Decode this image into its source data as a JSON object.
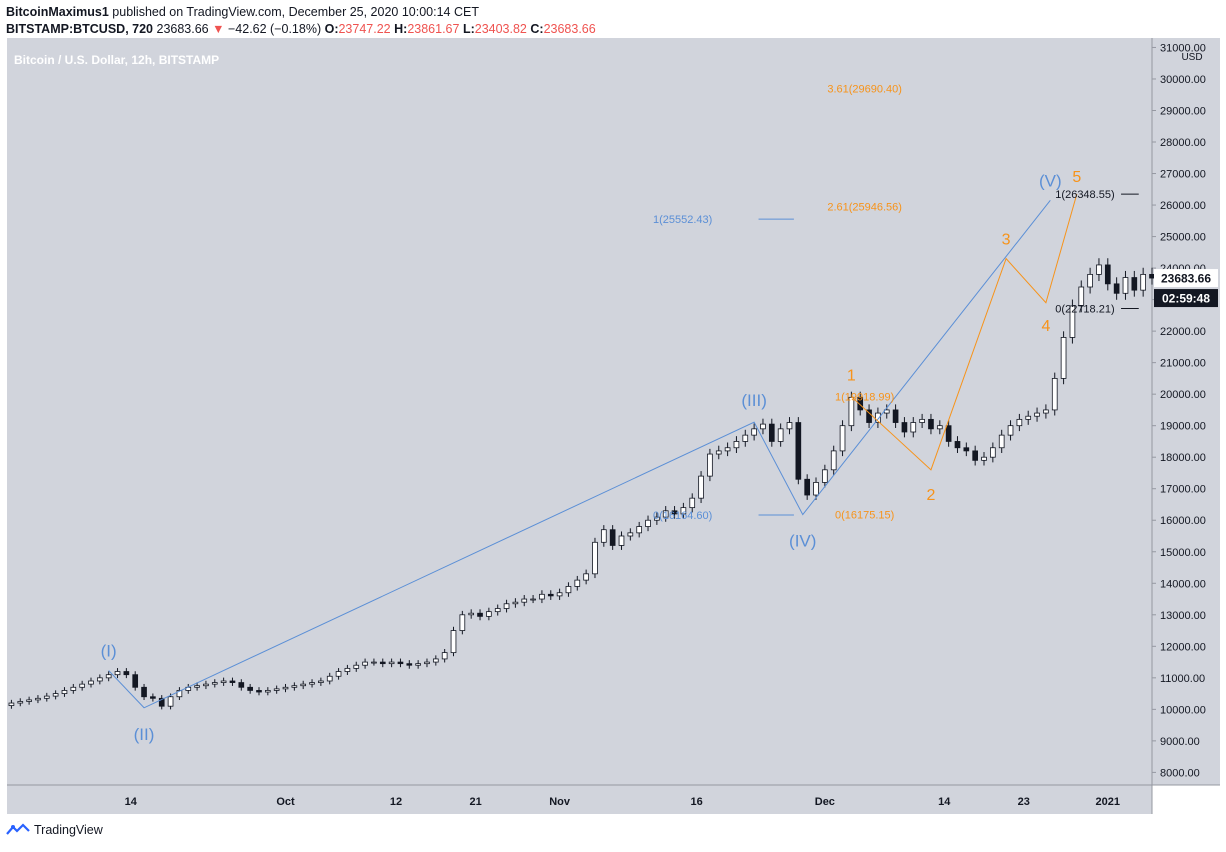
{
  "header": {
    "publisher": "BitcoinMaximus1",
    "published_text": "published on TradingView.com, December 25, 2020 10:00:14 CET",
    "symbol": "BITSTAMP:BTCUSD, 720",
    "last": "23683.66",
    "change_arrow": "▼",
    "change": "−42.62 (−0.18%)",
    "o_label": "O:",
    "o_value": "23747.22",
    "h_label": "H:",
    "h_value": "23861.67",
    "l_label": "L:",
    "l_value": "23403.82",
    "c_label": "C:",
    "c_value": "23683.66"
  },
  "chart_title": "Bitcoin / U.S. Dollar, 12h, BITSTAMP",
  "footer": {
    "brand": "TradingView"
  },
  "colors": {
    "plot_bg": "#d1d4dc",
    "blue": "#5b8fd6",
    "orange": "#f7931a",
    "candle": "#131722",
    "axis_text": "#131722"
  },
  "chart_data": {
    "type": "candlestick",
    "timeframe": "12h",
    "ylim": [
      7600,
      31300
    ],
    "y_axis_unit": "USD",
    "y_ticks": [
      8000,
      9000,
      10000,
      11000,
      12000,
      13000,
      14000,
      15000,
      16000,
      17000,
      18000,
      19000,
      20000,
      21000,
      22000,
      23000,
      24000,
      25000,
      26000,
      27000,
      28000,
      29000,
      30000,
      31000
    ],
    "x_ticks": [
      {
        "label": "14",
        "x": 14.5
      },
      {
        "label": "Oct",
        "x": 32
      },
      {
        "label": "12",
        "x": 44.5
      },
      {
        "label": "21",
        "x": 53.5
      },
      {
        "label": "Nov",
        "x": 63
      },
      {
        "label": "16",
        "x": 78.5
      },
      {
        "label": "Dec",
        "x": 93
      },
      {
        "label": "14",
        "x": 106.5
      },
      {
        "label": "23",
        "x": 115.5
      },
      {
        "label": "2021",
        "x": 125
      }
    ],
    "x_range": [
      0.5,
      130
    ],
    "last_price_label": "23683.66",
    "countdown_label": "02:59:48",
    "closes": [
      10200,
      10250,
      10300,
      10350,
      10420,
      10500,
      10600,
      10700,
      10800,
      10900,
      11000,
      11100,
      11200,
      11100,
      10700,
      10400,
      10350,
      10100,
      10400,
      10600,
      10700,
      10750,
      10800,
      10850,
      10900,
      10850,
      10700,
      10600,
      10550,
      10600,
      10650,
      10700,
      10750,
      10800,
      10850,
      10900,
      11050,
      11200,
      11300,
      11400,
      11500,
      11500,
      11450,
      11500,
      11450,
      11400,
      11450,
      11500,
      11600,
      11800,
      12500,
      13000,
      13050,
      12950,
      13100,
      13200,
      13350,
      13400,
      13500,
      13500,
      13650,
      13600,
      13700,
      13900,
      14100,
      14300,
      15300,
      15700,
      15200,
      15500,
      15600,
      15800,
      16000,
      16100,
      16300,
      16200,
      16400,
      16700,
      17400,
      18100,
      18200,
      18300,
      18500,
      18700,
      18900,
      19050,
      18500,
      18900,
      19100,
      17300,
      16800,
      17200,
      17600,
      18200,
      19000,
      19900,
      19500,
      19100,
      19400,
      19500,
      19100,
      18800,
      19100,
      19200,
      18900,
      19000,
      18500,
      18300,
      18200,
      17900,
      18000,
      18300,
      18700,
      19000,
      19200,
      19300,
      19400,
      19500,
      20500,
      21800,
      22800,
      23400,
      23800,
      24100,
      23500,
      23200,
      23700,
      23300,
      23800,
      23683.66
    ],
    "waves_blue": [
      {
        "label": "(I)",
        "x": 12,
        "price": 11230,
        "label_dy": -20
      },
      {
        "label": "(II)",
        "x": 16,
        "price": 10050,
        "label_dy": 26
      },
      {
        "label": "(III)",
        "x": 85,
        "price": 19110,
        "label_dy": -22
      },
      {
        "label": "(IV)",
        "x": 90.5,
        "price": 16180,
        "label_dy": 26
      },
      {
        "label": "(V)",
        "x": 118.5,
        "price": 26150,
        "label_dy": -20
      }
    ],
    "waves_orange": [
      {
        "label": "1",
        "x": 96,
        "price": 19920,
        "label_dy": -22
      },
      {
        "label": "2",
        "x": 105,
        "price": 17600,
        "label_dy": 24
      },
      {
        "label": "3",
        "x": 113.5,
        "price": 24300,
        "label_dy": -20
      },
      {
        "label": "4",
        "x": 118,
        "price": 22900,
        "label_dy": 22
      },
      {
        "label": "5",
        "x": 121.5,
        "price": 26350,
        "label_dy": -18
      }
    ],
    "fib_levels": [
      {
        "text": "3.61(29690.40)",
        "price": 29690.4,
        "color": "orange",
        "line": false,
        "label_x": 97.5
      },
      {
        "text": "2.61(25946.56)",
        "price": 25946.56,
        "color": "orange",
        "line": false,
        "label_x": 97.5
      },
      {
        "text": "1(19918.99)",
        "price": 19918.99,
        "color": "orange",
        "line": false,
        "label_x": 97.5
      },
      {
        "text": "0(16175.15)",
        "price": 16175.15,
        "color": "orange",
        "line": false,
        "label_x": 97.5
      },
      {
        "text": "1(25552.43)",
        "price": 25552.43,
        "color": "blue",
        "line": true,
        "label_x": 80.5,
        "line_x1": 85.5,
        "line_x2": 89.5
      },
      {
        "text": "0(16164.60)",
        "price": 16164.6,
        "color": "blue",
        "line": true,
        "label_x": 80.5,
        "line_x1": 85.5,
        "line_x2": 89.5
      },
      {
        "text": "1(26348.55)",
        "price": 26348.55,
        "color": "black",
        "line": true,
        "label_x": 126,
        "line_x1": 126.5,
        "line_x2": 128.5
      },
      {
        "text": "0(22718.21)",
        "price": 22718.21,
        "color": "black",
        "line": true,
        "label_x": 126,
        "line_x1": 126.5,
        "line_x2": 128.5
      }
    ]
  }
}
